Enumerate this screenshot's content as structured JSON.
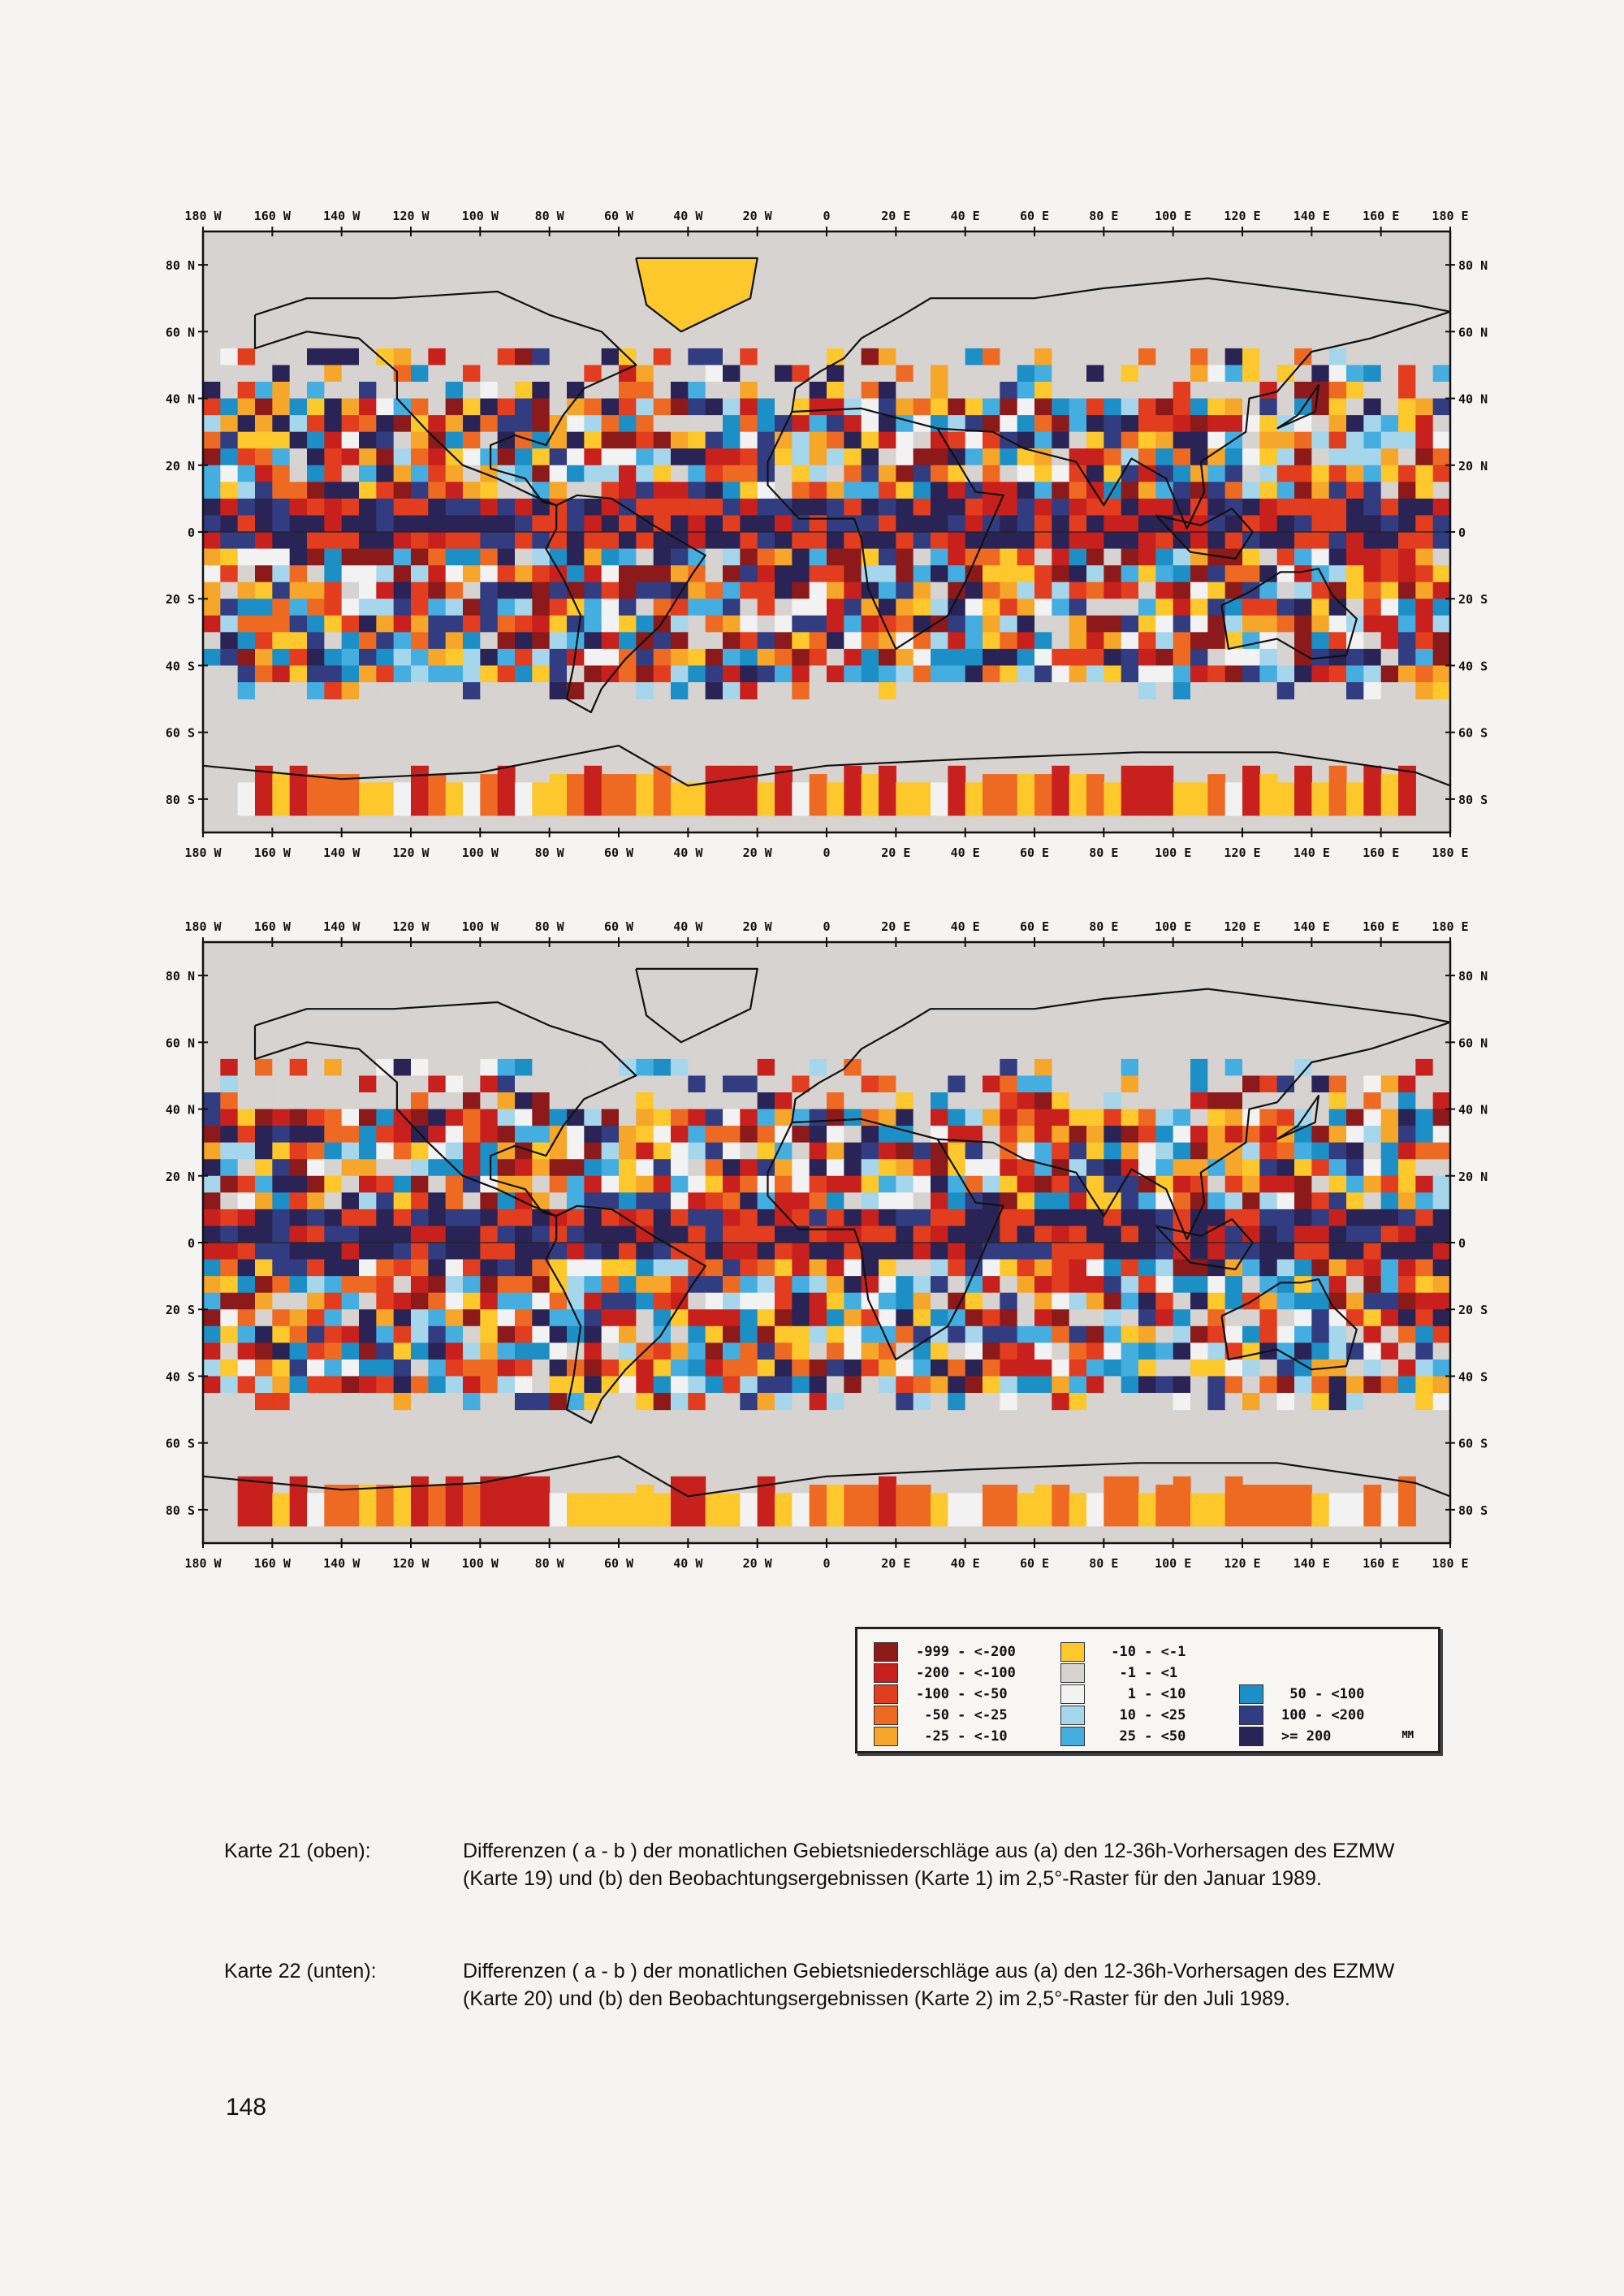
{
  "axes": {
    "lon_labels": [
      "180 W",
      "160 W",
      "140 W",
      "120 W",
      "100 W",
      "80 W",
      "60 W",
      "40 W",
      "20 W",
      "0",
      "20 E",
      "40 E",
      "60 E",
      "80 E",
      "100 E",
      "120 E",
      "140 E",
      "160 E",
      "180 E"
    ],
    "lat_labels_left": [
      "80 N",
      "60 N",
      "40 N",
      "20 N",
      "0",
      "20 S",
      "40 S",
      "60 S",
      "80 S"
    ],
    "lat_labels_right": [
      "80 N",
      "60 N",
      "40 N",
      "20 N",
      "0",
      "20 S",
      "40 S",
      "60 S",
      "80 S"
    ]
  },
  "legend": {
    "items": [
      {
        "color": "#8c1a1a",
        "label": "-999 - <-200"
      },
      {
        "color": "#c8201c",
        "label": "-200 - <-100"
      },
      {
        "color": "#e23d1e",
        "label": "-100 - <-50"
      },
      {
        "color": "#ee6a22",
        "label": " -50 - <-25"
      },
      {
        "color": "#f6a628",
        "label": " -25 - <-10"
      },
      {
        "color": "#fcc82c",
        "label": " -10 - <-1"
      },
      {
        "color": "#d6d3d0",
        "label": "  -1 - <1"
      },
      {
        "color": "#f2f2f2",
        "label": "   1 - <10"
      },
      {
        "color": "#a6d6ec",
        "label": "  10 - <25"
      },
      {
        "color": "#44aee0",
        "label": "  25 - <50"
      },
      {
        "color": "#1c8fc6",
        "label": " 50 - <100"
      },
      {
        "color": "#323c80",
        "label": "100 - <200"
      },
      {
        "color": "#2a2456",
        "label": ">= 200"
      }
    ],
    "unit": "MM"
  },
  "captions": [
    {
      "label": "Karte 21 (oben):",
      "text": "Differenzen ( a - b ) der monatlichen Gebietsniederschläge aus (a) den 12-36h-Vorhersagen des EZMW (Karte 19) und (b) den Beobachtungsergebnissen (Karte 1) im 2,5°-Raster für den Januar 1989."
    },
    {
      "label": "Karte 22 (unten):",
      "text": "Differenzen ( a - b ) der monatlichen Gebietsniederschläge aus (a) den 12-36h-Vorhersagen des EZMW (Karte 20) und (b) den Beobachtungsergebnissen (Karte 2) im 2,5°-Raster für den Juli 1989."
    }
  ],
  "page_number": "148"
}
